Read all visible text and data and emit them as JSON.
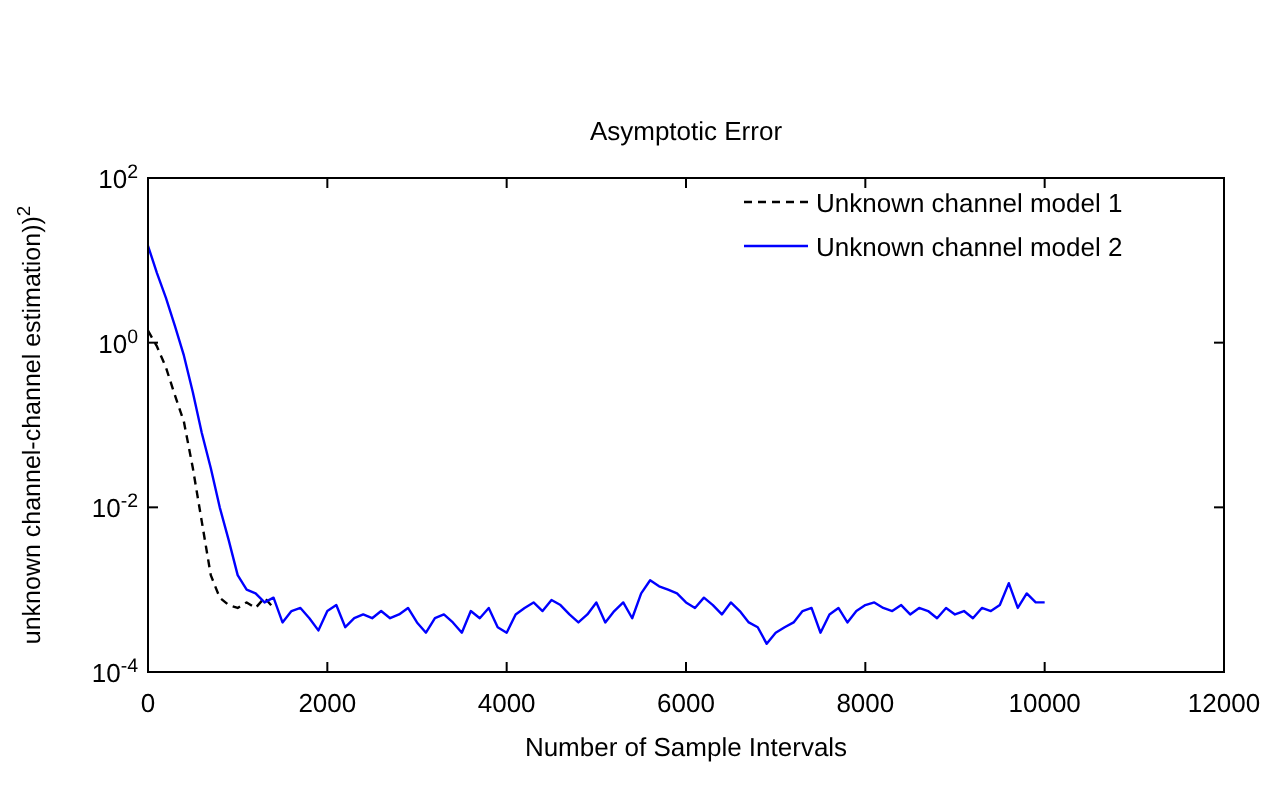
{
  "chart_data": {
    "type": "line",
    "title": "Asymptotic Error",
    "xlabel": "Number of Sample Intervals",
    "ylabel": "unknown channel-channel estimation))$^{2}$",
    "log": "y",
    "xlim": [
      0,
      12000
    ],
    "xticks": [
      0,
      2000,
      4000,
      6000,
      8000,
      10000,
      12000
    ],
    "ylim": [
      0.0001,
      100
    ],
    "yticks": [
      {
        "value": 0.0001,
        "label": "10$^{-4}$"
      },
      {
        "value": 0.01,
        "label": "10$^{-2}$"
      },
      {
        "value": 1,
        "label": "10$^{0}$"
      },
      {
        "value": 100,
        "label": "10$^{2}$"
      }
    ],
    "grid": false,
    "legend": "top right",
    "series": [
      {
        "name": "Unknown channel model 1",
        "color": "#000000",
        "line_style": "dashed",
        "x": [
          0,
          100,
          200,
          300,
          400,
          500,
          600,
          700,
          800,
          900,
          1000,
          1100,
          1200,
          1300,
          1400
        ],
        "values": [
          1.4,
          0.9,
          0.5,
          0.23,
          0.11,
          0.03,
          0.0067,
          0.0015,
          0.0008,
          0.00065,
          0.0006,
          0.0007,
          0.0006,
          0.0008,
          0.0006
        ]
      },
      {
        "name": "Unknown channel model 2",
        "color": "#0000ff",
        "line_style": "solid",
        "x": [
          0,
          100,
          200,
          300,
          400,
          500,
          600,
          700,
          800,
          900,
          1000,
          1100,
          1200,
          1300,
          1400,
          1500,
          1600,
          1700,
          1800,
          1900,
          2000,
          2100,
          2200,
          2300,
          2400,
          2500,
          2600,
          2700,
          2800,
          2900,
          3000,
          3100,
          3200,
          3300,
          3400,
          3500,
          3600,
          3700,
          3800,
          3900,
          4000,
          4100,
          4200,
          4300,
          4400,
          4500,
          4600,
          4700,
          4800,
          4900,
          5000,
          5100,
          5200,
          5300,
          5400,
          5500,
          5600,
          5700,
          5800,
          5900,
          6000,
          6100,
          6200,
          6300,
          6400,
          6500,
          6600,
          6700,
          6800,
          6900,
          7000,
          7100,
          7200,
          7300,
          7400,
          7500,
          7600,
          7700,
          7800,
          7900,
          8000,
          8100,
          8200,
          8300,
          8400,
          8500,
          8600,
          8700,
          8800,
          8900,
          9000,
          9100,
          9200,
          9300,
          9400,
          9500,
          9600,
          9700,
          9800,
          9900,
          10000
        ],
        "values": [
          15,
          7,
          3.5,
          1.6,
          0.7,
          0.25,
          0.08,
          0.03,
          0.01,
          0.004,
          0.0015,
          0.001,
          0.0009,
          0.0007,
          0.0008,
          0.0004,
          0.00055,
          0.0006,
          0.00045,
          0.00032,
          0.00055,
          0.00065,
          0.00035,
          0.00045,
          0.0005,
          0.00045,
          0.00055,
          0.00045,
          0.0005,
          0.0006,
          0.0004,
          0.0003,
          0.00045,
          0.0005,
          0.0004,
          0.0003,
          0.00055,
          0.00045,
          0.0006,
          0.00035,
          0.0003,
          0.0005,
          0.0006,
          0.0007,
          0.00055,
          0.00075,
          0.00065,
          0.0005,
          0.0004,
          0.0005,
          0.0007,
          0.0004,
          0.00055,
          0.0007,
          0.00045,
          0.0009,
          0.0013,
          0.0011,
          0.001,
          0.0009,
          0.0007,
          0.0006,
          0.0008,
          0.00065,
          0.0005,
          0.0007,
          0.00055,
          0.0004,
          0.00035,
          0.00022,
          0.0003,
          0.00035,
          0.0004,
          0.00055,
          0.0006,
          0.0003,
          0.0005,
          0.0006,
          0.0004,
          0.00055,
          0.00065,
          0.0007,
          0.0006,
          0.00055,
          0.00065,
          0.0005,
          0.0006,
          0.00055,
          0.00045,
          0.0006,
          0.0005,
          0.00055,
          0.00045,
          0.0006,
          0.00055,
          0.00065,
          0.0012,
          0.0006,
          0.0009,
          0.0007,
          0.0007
        ]
      }
    ]
  }
}
